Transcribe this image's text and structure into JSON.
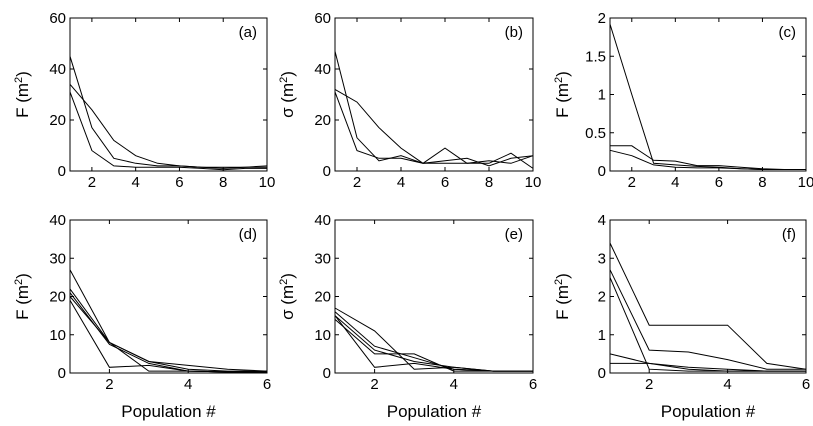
{
  "chart_data": [
    {
      "type": "line",
      "tag": "(a)",
      "ylabel": "F (m2)",
      "ylabel_base": "F (m",
      "ylabel_sup": "2",
      "ylabel_close": ")",
      "xlabel": "",
      "xlim": [
        1,
        10
      ],
      "ylim": [
        0,
        60
      ],
      "xticks": [
        2,
        4,
        6,
        8,
        10
      ],
      "yticks": [
        0,
        20,
        40,
        60
      ],
      "series": [
        {
          "x": [
            1,
            2,
            3,
            4,
            5,
            6,
            7,
            8,
            9,
            10
          ],
          "values": [
            45,
            17,
            5,
            3,
            2,
            2,
            1.5,
            1,
            1.5,
            2
          ]
        },
        {
          "x": [
            1,
            2,
            3,
            4,
            5,
            6,
            7,
            8,
            9,
            10
          ],
          "values": [
            34,
            24,
            12,
            6,
            3,
            2,
            1.5,
            1.5,
            1.5,
            1.5
          ]
        },
        {
          "x": [
            1,
            2,
            3,
            4,
            5,
            6,
            7,
            8,
            9,
            10
          ],
          "values": [
            31,
            8,
            2,
            1.5,
            1.5,
            1.5,
            1,
            0.5,
            1,
            1
          ]
        }
      ]
    },
    {
      "type": "line",
      "tag": "(b)",
      "ylabel": "σ (m2)",
      "ylabel_base": "σ (m",
      "ylabel_sup": "2",
      "ylabel_close": ")",
      "xlabel": "",
      "xlim": [
        1,
        10
      ],
      "ylim": [
        0,
        60
      ],
      "xticks": [
        2,
        4,
        6,
        8,
        10
      ],
      "yticks": [
        0,
        20,
        40,
        60
      ],
      "series": [
        {
          "x": [
            1,
            2,
            3,
            4,
            5,
            6,
            7,
            8,
            9,
            10
          ],
          "values": [
            47,
            13,
            4,
            6,
            3,
            3,
            3,
            3,
            7,
            1
          ]
        },
        {
          "x": [
            1,
            2,
            3,
            4,
            5,
            6,
            7,
            8,
            9,
            10
          ],
          "values": [
            32,
            27,
            17,
            9,
            3,
            4,
            5,
            2,
            5,
            6
          ]
        },
        {
          "x": [
            1,
            2,
            3,
            4,
            5,
            6,
            7,
            8,
            9,
            10
          ],
          "values": [
            31,
            8,
            5,
            5,
            3,
            9,
            3,
            4,
            3,
            6
          ]
        }
      ]
    },
    {
      "type": "line",
      "tag": "(c)",
      "ylabel": "F (m2)",
      "ylabel_base": "F (m",
      "ylabel_sup": "2",
      "ylabel_close": ")",
      "xlabel": "",
      "xlim": [
        1,
        10
      ],
      "ylim": [
        0,
        2
      ],
      "xticks": [
        2,
        4,
        6,
        8,
        10
      ],
      "yticks": [
        0,
        0.5,
        1,
        1.5,
        2
      ],
      "series": [
        {
          "x": [
            1,
            2,
            3,
            4,
            5,
            6,
            7,
            8,
            9,
            10
          ],
          "values": [
            1.92,
            1.0,
            0.1,
            0.08,
            0.06,
            0.05,
            0.03,
            0.02,
            0.02,
            0.02
          ]
        },
        {
          "x": [
            1,
            2,
            3,
            4,
            5,
            6,
            7,
            8,
            9,
            10
          ],
          "values": [
            0.33,
            0.33,
            0.14,
            0.13,
            0.07,
            0.07,
            0.05,
            0.03,
            0.02,
            0.02
          ]
        },
        {
          "x": [
            1,
            2,
            3,
            4,
            5,
            6,
            7,
            8,
            9,
            10
          ],
          "values": [
            0.27,
            0.2,
            0.08,
            0.05,
            0.04,
            0.04,
            0.03,
            0.02,
            0.02,
            0.02
          ]
        }
      ]
    },
    {
      "type": "line",
      "tag": "(d)",
      "ylabel": "F (m2)",
      "ylabel_base": "F (m",
      "ylabel_sup": "2",
      "ylabel_close": ")",
      "xlabel": "Population #",
      "xlim": [
        1,
        6
      ],
      "ylim": [
        0,
        40
      ],
      "xticks": [
        2,
        4,
        6
      ],
      "yticks": [
        0,
        10,
        20,
        30,
        40
      ],
      "series": [
        {
          "x": [
            1,
            2,
            3,
            4,
            5,
            6
          ],
          "values": [
            27,
            8,
            3,
            2,
            1,
            0.5
          ]
        },
        {
          "x": [
            1,
            2,
            3,
            4,
            5,
            6
          ],
          "values": [
            22,
            8,
            3,
            1,
            0.5,
            0.5
          ]
        },
        {
          "x": [
            1,
            2,
            3,
            4,
            5,
            6
          ],
          "values": [
            21,
            7.5,
            2.5,
            0.5,
            0.3,
            0.3
          ]
        },
        {
          "x": [
            1,
            2,
            3,
            4,
            5,
            6
          ],
          "values": [
            19,
            1.5,
            2,
            0.5,
            0.3,
            0.3
          ]
        },
        {
          "x": [
            1,
            2,
            3,
            4,
            5,
            6
          ],
          "values": [
            20,
            8,
            0.5,
            0.5,
            0.3,
            0.3
          ]
        }
      ]
    },
    {
      "type": "line",
      "tag": "(e)",
      "ylabel": "σ (m2)",
      "ylabel_base": "σ (m",
      "ylabel_sup": "2",
      "ylabel_close": ")",
      "xlabel": "Population #",
      "xlim": [
        1,
        6
      ],
      "ylim": [
        0,
        40
      ],
      "xticks": [
        2,
        4,
        6
      ],
      "yticks": [
        0,
        10,
        20,
        30,
        40
      ],
      "series": [
        {
          "x": [
            1,
            2,
            3,
            4,
            5,
            6
          ],
          "values": [
            17,
            11,
            1,
            1.5,
            0.5,
            0.5
          ]
        },
        {
          "x": [
            1,
            2,
            3,
            4,
            5,
            6
          ],
          "values": [
            16,
            7,
            4,
            1,
            0.5,
            0.5
          ]
        },
        {
          "x": [
            1,
            2,
            3,
            4,
            5,
            6
          ],
          "values": [
            15,
            6,
            3,
            1.5,
            0.5,
            0.5
          ]
        },
        {
          "x": [
            1,
            2,
            3,
            4,
            5,
            6
          ],
          "values": [
            15,
            1.5,
            2.5,
            1,
            0.5,
            0.5
          ]
        },
        {
          "x": [
            1,
            2,
            3,
            4,
            5,
            6
          ],
          "values": [
            14,
            5,
            5,
            0.5,
            0.5,
            0.5
          ]
        }
      ]
    },
    {
      "type": "line",
      "tag": "(f)",
      "ylabel": "F (m2)",
      "ylabel_base": "F (m",
      "ylabel_sup": "2",
      "ylabel_close": ")",
      "xlabel": "Population #",
      "xlim": [
        1,
        6
      ],
      "ylim": [
        0,
        4
      ],
      "xticks": [
        2,
        4,
        6
      ],
      "yticks": [
        0,
        1,
        2,
        3,
        4
      ],
      "series": [
        {
          "x": [
            1,
            2,
            3,
            4,
            5,
            6
          ],
          "values": [
            3.4,
            1.25,
            1.25,
            1.25,
            0.25,
            0.1
          ]
        },
        {
          "x": [
            1,
            2,
            3,
            4,
            5,
            6
          ],
          "values": [
            2.7,
            0.6,
            0.55,
            0.35,
            0.1,
            0.1
          ]
        },
        {
          "x": [
            1,
            2,
            3,
            4,
            5,
            6
          ],
          "values": [
            2.5,
            0.1,
            0.05,
            0.05,
            0.05,
            0.05
          ]
        },
        {
          "x": [
            1,
            2,
            3,
            4,
            5,
            6
          ],
          "values": [
            0.5,
            0.25,
            0.15,
            0.1,
            0.05,
            0.05
          ]
        },
        {
          "x": [
            1,
            2,
            3,
            4,
            5,
            6
          ],
          "values": [
            0.25,
            0.25,
            0.1,
            0.05,
            0.05,
            0.05
          ]
        }
      ]
    }
  ]
}
